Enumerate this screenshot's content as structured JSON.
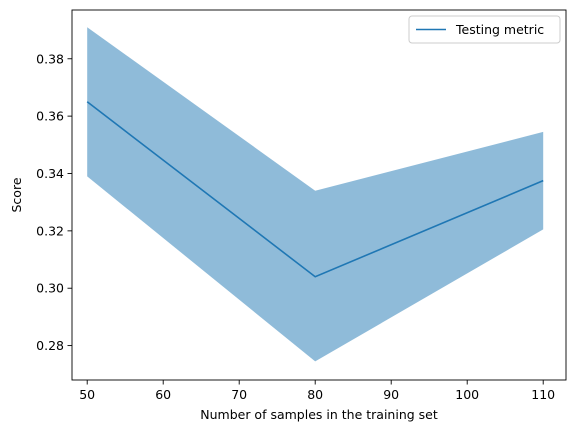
{
  "chart_data": {
    "type": "line",
    "title": "",
    "xlabel": "Number of samples in the training set",
    "ylabel": "Score",
    "xlim": [
      48,
      113
    ],
    "ylim": [
      0.268,
      0.397
    ],
    "xticks": [
      50,
      60,
      70,
      80,
      90,
      100,
      110
    ],
    "yticks": [
      0.28,
      0.3,
      0.32,
      0.34,
      0.36,
      0.38
    ],
    "ytick_labels": [
      "0.28",
      "0.30",
      "0.32",
      "0.34",
      "0.36",
      "0.38"
    ],
    "grid": false,
    "legend_position": "top-right",
    "series": [
      {
        "name": "Testing metric",
        "color": "#1f77b4",
        "x": [
          50,
          80,
          110
        ],
        "y": [
          0.365,
          0.304,
          0.3375
        ],
        "band_lower": [
          0.339,
          0.2745,
          0.3205
        ],
        "band_upper": [
          0.391,
          0.334,
          0.3545
        ],
        "band_color": "#1f77b4",
        "band_opacity": 0.5
      }
    ]
  }
}
